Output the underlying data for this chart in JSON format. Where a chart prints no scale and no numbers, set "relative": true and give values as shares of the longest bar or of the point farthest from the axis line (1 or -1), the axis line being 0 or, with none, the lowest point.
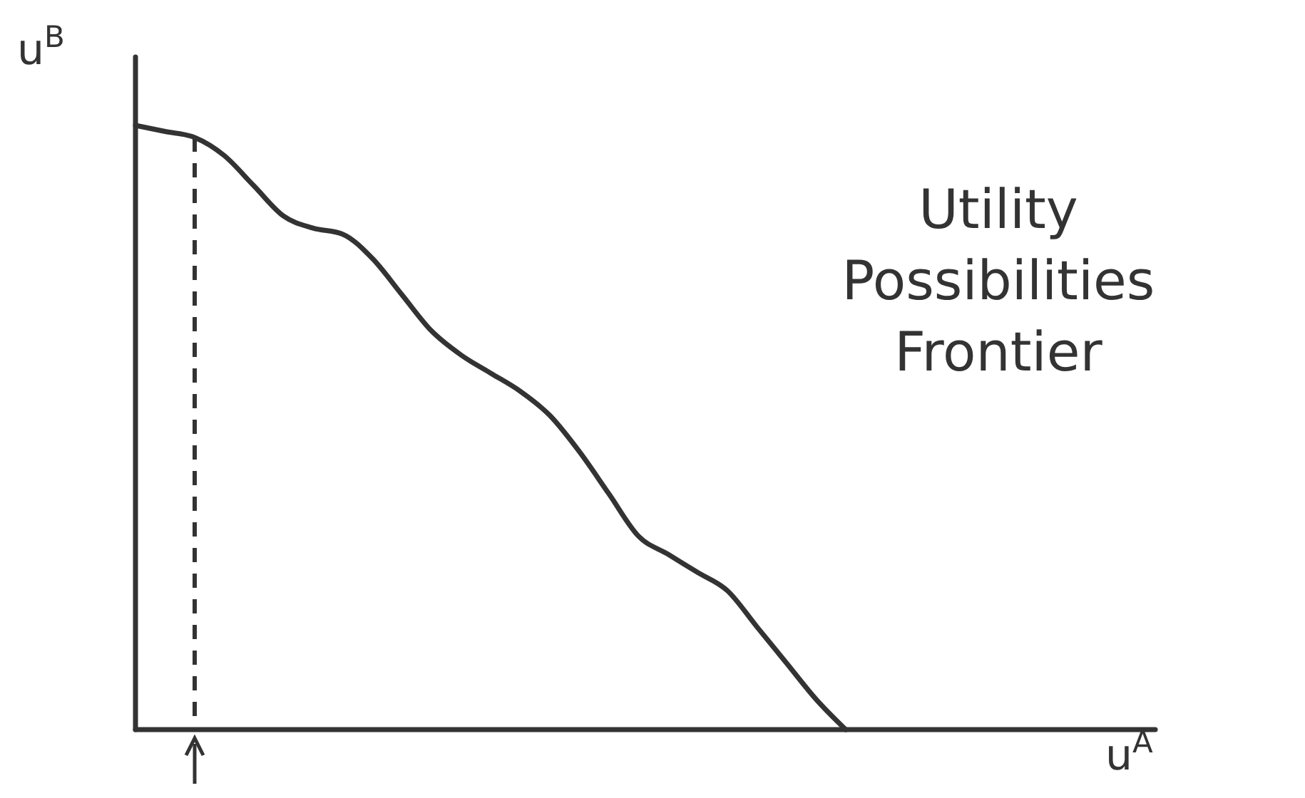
{
  "chart_data": {
    "type": "line",
    "relative": true,
    "ylabel": "u$^{B}$",
    "categories": [
      null,
      null,
      null,
      null,
      null,
      null,
      null,
      null,
      null,
      null,
      null,
      null,
      null,
      null,
      null,
      null,
      null,
      null,
      null,
      null,
      null,
      null,
      null,
      null,
      null
    ],
    "series": [
      {
        "color": "#333333",
        "values": [
          1.0,
          0.99,
          0.98,
          0.95,
          0.9,
          0.85,
          0.83,
          0.82,
          0.78,
          0.72,
          0.66,
          0.62,
          0.59,
          0.56,
          0.52,
          0.46,
          0.39,
          0.32,
          0.29,
          0.26,
          0.23,
          0.17,
          0.11,
          0.05,
          0
        ]
      }
    ],
    "annotations": [
      "Utility Possibilities Frontier",
      "u$^{A}$"
    ],
    "marker": "none",
    "line_style": "solid"
  }
}
